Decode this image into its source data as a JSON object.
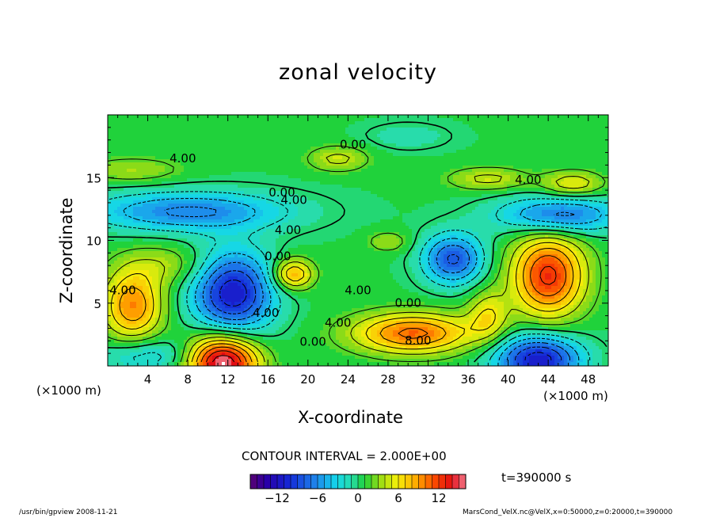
{
  "chart_data": {
    "type": "heatmap",
    "title": "zonal velocity",
    "xlabel": "X-coordinate",
    "ylabel": "Z-coordinate",
    "x_unit_left": "(×1000 m)",
    "x_unit_right": "(×1000 m)",
    "x_ticks": [
      "4",
      "8",
      "12",
      "16",
      "20",
      "24",
      "28",
      "32",
      "36",
      "40",
      "44",
      "48"
    ],
    "y_ticks": [
      "5",
      "10",
      "15"
    ],
    "xlim": [
      0,
      50
    ],
    "ylim": [
      0,
      20
    ],
    "contour_interval_text": "CONTOUR INTERVAL = 2.000E+00",
    "time_text": "t=390000 s",
    "colorbar": {
      "range": [
        -16,
        16
      ],
      "tick_labels": [
        "−12",
        "−6",
        "0",
        "6",
        "12"
      ],
      "tick_values": [
        -12,
        -6,
        0,
        6,
        12
      ]
    },
    "contour_labels": [
      {
        "text": "0.00",
        "x": 24.5,
        "y": 17.6
      },
      {
        "text": "4.00",
        "x": 7.5,
        "y": 16.5
      },
      {
        "text": "4.00",
        "x": 42.0,
        "y": 14.8
      },
      {
        "text": "0.00",
        "x": 17.4,
        "y": 13.8
      },
      {
        "text": "4.00",
        "x": 18.6,
        "y": 13.2
      },
      {
        "text": "4.00",
        "x": 18.0,
        "y": 10.8
      },
      {
        "text": "0.00",
        "x": 17.0,
        "y": 8.7
      },
      {
        "text": "4.00",
        "x": 1.5,
        "y": 6.0
      },
      {
        "text": "4.00",
        "x": 25.0,
        "y": 6.0
      },
      {
        "text": "0.00",
        "x": 30.0,
        "y": 5.0
      },
      {
        "text": "4.00",
        "x": 15.8,
        "y": 4.2
      },
      {
        "text": "4.00",
        "x": 23.0,
        "y": 3.4
      },
      {
        "text": "8.00",
        "x": 31.0,
        "y": 2.0
      },
      {
        "text": "0.00",
        "x": 20.5,
        "y": 1.9
      }
    ],
    "features": [
      {
        "kind": "max",
        "x": 11.5,
        "y": 0.3,
        "value": 16,
        "sx": 3.5,
        "sy": 2.2
      },
      {
        "kind": "min",
        "x": 12.5,
        "y": 5.8,
        "value": -12,
        "sx": 4.0,
        "sy": 3.3
      },
      {
        "kind": "max",
        "x": 18.5,
        "y": 7.3,
        "value": 8,
        "sx": 2.0,
        "sy": 1.2
      },
      {
        "kind": "max",
        "x": 2.5,
        "y": 4.8,
        "value": 9,
        "sx": 3.0,
        "sy": 2.8
      },
      {
        "kind": "max",
        "x": 30.5,
        "y": 2.6,
        "value": 10,
        "sx": 6.0,
        "sy": 1.6
      },
      {
        "kind": "max",
        "x": 44.0,
        "y": 7.2,
        "value": 12,
        "sx": 3.6,
        "sy": 3.3
      },
      {
        "kind": "min",
        "x": 43.0,
        "y": 0.5,
        "value": -12,
        "sx": 4.2,
        "sy": 2.0
      },
      {
        "kind": "min",
        "x": 34.5,
        "y": 8.5,
        "value": -9,
        "sx": 3.0,
        "sy": 2.0
      },
      {
        "kind": "min",
        "x": 45.0,
        "y": 12.0,
        "value": -8,
        "sx": 6.0,
        "sy": 1.5
      },
      {
        "kind": "min",
        "x": 8.0,
        "y": 12.3,
        "value": -7,
        "sx": 10.0,
        "sy": 1.6
      },
      {
        "kind": "max",
        "x": 38.0,
        "y": 14.9,
        "value": 4,
        "sx": 4.0,
        "sy": 0.9
      },
      {
        "kind": "max",
        "x": 46.5,
        "y": 14.5,
        "value": 5,
        "sx": 3.0,
        "sy": 1.0
      },
      {
        "kind": "max",
        "x": 2.5,
        "y": 15.6,
        "value": 3,
        "sx": 5.0,
        "sy": 1.0
      },
      {
        "kind": "max",
        "x": 23.0,
        "y": 16.5,
        "value": 4,
        "sx": 3.0,
        "sy": 1.0
      },
      {
        "kind": "max",
        "x": 28.0,
        "y": 9.9,
        "value": 3,
        "sx": 2.0,
        "sy": 0.8
      },
      {
        "kind": "max",
        "x": 6.0,
        "y": 8.0,
        "value": 3,
        "sx": 4.5,
        "sy": 1.6
      },
      {
        "kind": "min",
        "x": 4.0,
        "y": 0.8,
        "value": -4,
        "sx": 5.0,
        "sy": 1.4
      },
      {
        "kind": "min",
        "x": 30.0,
        "y": 18.3,
        "value": -2,
        "sx": 4.0,
        "sy": 1.0
      },
      {
        "kind": "max",
        "x": 38.0,
        "y": 4.0,
        "value": 5,
        "sx": 2.0,
        "sy": 2.0
      }
    ]
  },
  "footer": {
    "left": "/usr/bin/gpview   2008-11-21",
    "right": "MarsCond_VelX.nc@VelX,x=0:50000,z=0:20000,t=390000"
  }
}
